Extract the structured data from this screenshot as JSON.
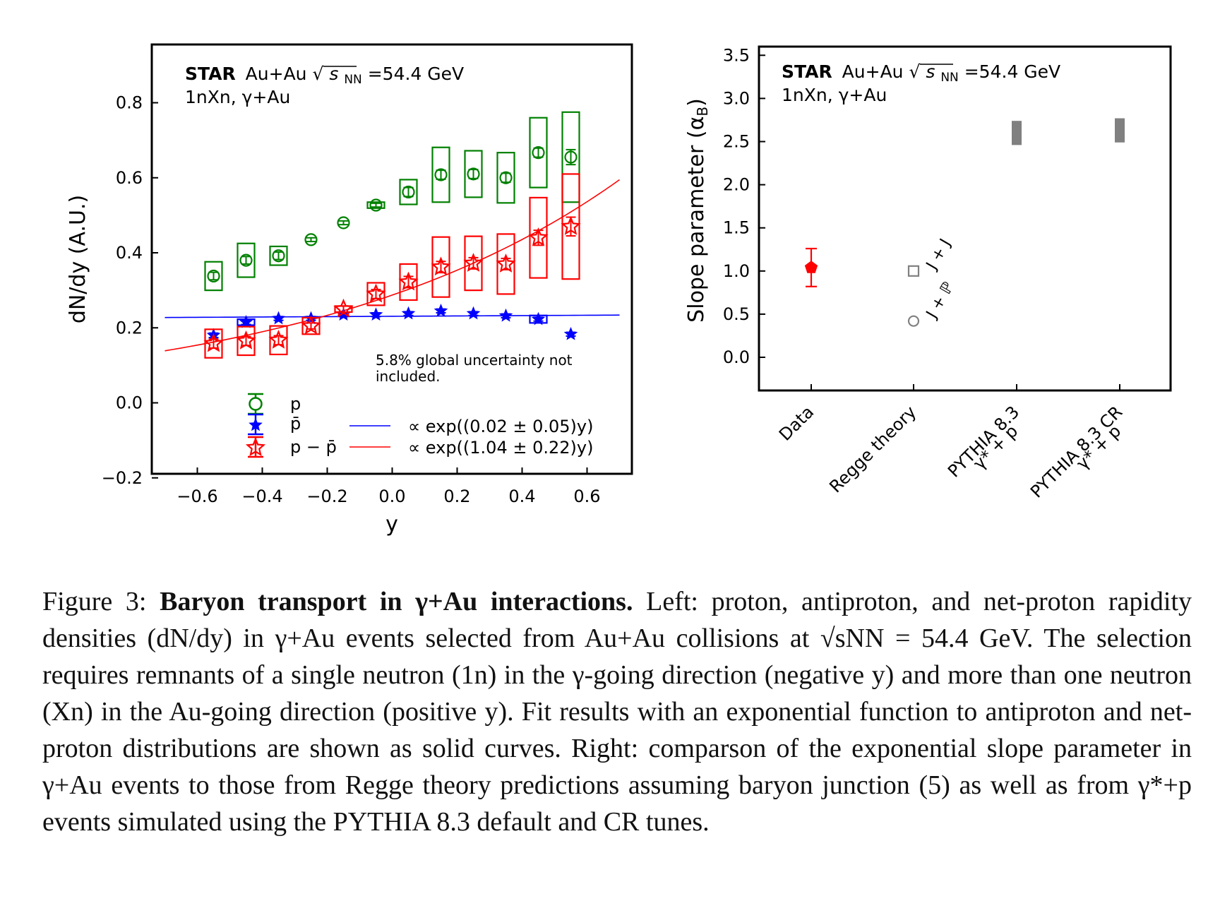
{
  "left_panel": {
    "header_bold": "STAR",
    "header_system": "Au+Au",
    "header_energy": "=54.4 GeV",
    "header_sqrt_symbol": "√",
    "header_sqrt_var": "s",
    "header_sqrt_sub": "NN",
    "header_line2": "1nXn, γ+Au",
    "note_line1": "5.8% global uncertainty not",
    "note_line2": "included.",
    "legend": {
      "p": "p",
      "pbar": "p̄",
      "net": "p − p̄",
      "fit_pbar": "∝  exp((0.02 ± 0.05)y)",
      "fit_net": "∝  exp((1.04 ± 0.22)y)"
    }
  },
  "right_panel": {
    "header_bold": "STAR",
    "header_system": "Au+Au",
    "header_energy": "=54.4 GeV",
    "header_sqrt_symbol": "√",
    "header_sqrt_var": "s",
    "header_sqrt_sub": "NN",
    "header_line2": "1nXn, γ+Au",
    "label_jj": "J + J",
    "label_jp": "J + ℙ"
  },
  "chart_data": [
    {
      "type": "scatter",
      "title": "",
      "xlabel": "y",
      "ylabel": "dN/dy (A.U.)",
      "xlim": [
        -0.72,
        0.72
      ],
      "ylim": [
        -0.2,
        0.95
      ],
      "xticks": [
        "−0.6",
        "−0.4",
        "−0.2",
        "0.0",
        "0.2",
        "0.4",
        "0.6"
      ],
      "xtick_values": [
        -0.6,
        -0.4,
        -0.2,
        0.0,
        0.2,
        0.4,
        0.6
      ],
      "yticks": [
        "−0.2",
        "0.0",
        "0.2",
        "0.4",
        "0.6",
        "0.8"
      ],
      "ytick_values": [
        -0.2,
        0.0,
        0.2,
        0.4,
        0.6,
        0.8
      ],
      "grid": false,
      "legend_position": "lower-center",
      "series": [
        {
          "name": "p",
          "color": "#008000",
          "marker": "circle-open",
          "x": [
            -0.55,
            -0.45,
            -0.35,
            -0.25,
            -0.15,
            -0.05,
            0.05,
            0.15,
            0.25,
            0.35,
            0.45,
            0.55
          ],
          "y": [
            0.338,
            0.38,
            0.392,
            0.435,
            0.48,
            0.527,
            0.562,
            0.608,
            0.61,
            0.6,
            0.667,
            0.655
          ],
          "stat_err": [
            0.01,
            0.01,
            0.01,
            0.005,
            0.005,
            0.005,
            0.012,
            0.012,
            0.012,
            0.012,
            0.012,
            0.02
          ],
          "sys_err": [
            0.038,
            0.045,
            0.025,
            0.0,
            0.0,
            0.008,
            0.033,
            0.073,
            0.062,
            0.067,
            0.093,
            0.12
          ]
        },
        {
          "name": "p̄",
          "color": "#0000ff",
          "marker": "star-filled",
          "x": [
            -0.55,
            -0.45,
            -0.35,
            -0.25,
            -0.15,
            -0.05,
            0.05,
            0.15,
            0.25,
            0.35,
            0.45,
            0.55
          ],
          "y": [
            0.18,
            0.215,
            0.225,
            0.225,
            0.235,
            0.235,
            0.238,
            0.245,
            0.238,
            0.232,
            0.223,
            0.183
          ],
          "stat_err": [
            0.006,
            0.006,
            0.005,
            0.005,
            0.005,
            0.005,
            0.005,
            0.005,
            0.005,
            0.005,
            0.005,
            0.005
          ],
          "sys_err": [
            0.0,
            0.008,
            0.0,
            0.0,
            0.0,
            0.0,
            0.0,
            0.0,
            0.0,
            0.0,
            0.01,
            0.0
          ]
        },
        {
          "name": "p − p̄",
          "color": "#ff0000",
          "marker": "star-open",
          "x": [
            -0.55,
            -0.45,
            -0.35,
            -0.25,
            -0.15,
            -0.05,
            0.05,
            0.15,
            0.25,
            0.35,
            0.45,
            0.55
          ],
          "y": [
            0.158,
            0.165,
            0.167,
            0.205,
            0.25,
            0.29,
            0.322,
            0.362,
            0.372,
            0.37,
            0.44,
            0.47
          ],
          "stat_err": [
            0.012,
            0.012,
            0.012,
            0.008,
            0.008,
            0.012,
            0.015,
            0.015,
            0.015,
            0.015,
            0.02,
            0.025
          ],
          "sys_err": [
            0.038,
            0.038,
            0.038,
            0.022,
            0.008,
            0.03,
            0.048,
            0.08,
            0.072,
            0.08,
            0.107,
            0.14
          ]
        }
      ],
      "fits": [
        {
          "name": "∝  exp((0.02 ± 0.05)y)",
          "color": "#0000ff",
          "A": 0.2307,
          "slope": 0.02,
          "xrange": [
            -0.7,
            0.7
          ]
        },
        {
          "name": "∝  exp((1.04 ± 0.22)y)",
          "color": "#ff0000",
          "A": 0.2872,
          "slope": 1.04,
          "xrange": [
            -0.7,
            0.7
          ]
        }
      ]
    },
    {
      "type": "scatter",
      "title": "",
      "xlabel": "",
      "ylabel": "Slope parameter (αB)",
      "ylabel_main": "Slope parameter (α",
      "ylabel_sub": "B",
      "ylabel_close": ")",
      "ylim": [
        -0.4,
        3.6
      ],
      "yticks": [
        "0.0",
        "0.5",
        "1.0",
        "1.5",
        "2.0",
        "2.5",
        "3.0",
        "3.5"
      ],
      "ytick_values": [
        0.0,
        0.5,
        1.0,
        1.5,
        2.0,
        2.5,
        3.0,
        3.5
      ],
      "grid": false,
      "categories": [
        "Data",
        "Regge theory",
        "PYTHIA 8.3",
        "PYTHIA 8.3 CR"
      ],
      "category_sublabels": [
        "",
        "",
        "γ* + p",
        "γ* + p"
      ],
      "points": [
        {
          "category": "Data",
          "value": 1.04,
          "err": 0.22,
          "color": "#ff0000",
          "marker": "pentagon-filled"
        },
        {
          "category": "Regge theory",
          "value": 1.0,
          "label": "J + J",
          "color": "#808080",
          "marker": "square-open"
        },
        {
          "category": "Regge theory",
          "value": 0.42,
          "label": "J + ℙ",
          "color": "#808080",
          "marker": "circle-open"
        },
        {
          "category": "PYTHIA 8.3",
          "value": 2.6,
          "err": 0.14,
          "color": "#808080",
          "marker": "band"
        },
        {
          "category": "PYTHIA 8.3 CR",
          "value": 2.63,
          "err": 0.14,
          "color": "#808080",
          "marker": "band"
        }
      ]
    }
  ],
  "caption": {
    "label": "Figure 3:",
    "title": "Baryon transport in γ+Au interactions.",
    "body": "Left: proton, antiproton, and net-proton rapidity densities (dN/dy) in γ+Au events selected from Au+Au collisions at √sNN = 54.4 GeV. The selection requires remnants of a single neutron (1n) in the γ-going direction (negative y) and more than one neutron (Xn) in the Au-going direction (positive y). Fit results with an exponential function to antiproton and net-proton distributions are shown as solid curves. Right: comparson of the exponential slope parameter in γ+Au events to those from Regge theory predictions assuming baryon junction (5) as well as from γ*+p events simulated using the PYTHIA 8.3 default and CR tunes."
  }
}
